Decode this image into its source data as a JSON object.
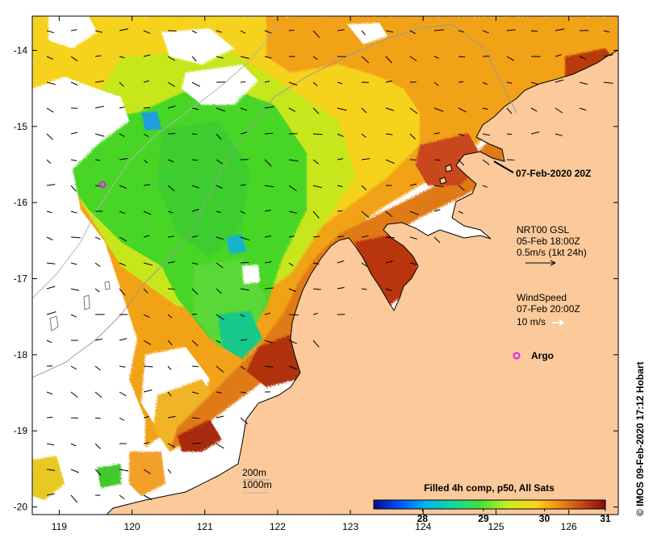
{
  "map": {
    "region": "North-west Australian shelf",
    "lon_ticks": [
      "119",
      "120",
      "121",
      "122",
      "123",
      "124",
      "125",
      "126"
    ],
    "lat_ticks": [
      "-14",
      "-15",
      "-16",
      "-17",
      "-18",
      "-19",
      "-20"
    ],
    "lon_range": [
      118.63,
      126.68
    ],
    "lat_range": [
      -20.1,
      -13.55
    ],
    "land_color": "#fbc99a",
    "no_data_color": "#ffffff"
  },
  "annotations": {
    "date_label": "07-Feb-2020 20Z",
    "current": {
      "line1": "NRT00 GSL",
      "line2": "05-Feb 18:00Z",
      "line3": "0.5m/s (1kt 24h)"
    },
    "wind": {
      "line1": "WindSpeed",
      "line2": "07-Feb 20:00Z",
      "line3": "10 m/s"
    },
    "argo_label": "Argo",
    "argo_color": "#e21ee2",
    "contours": {
      "line1": "200m",
      "line2": "1000m"
    }
  },
  "colorbar": {
    "title": "Filled 4h comp, p50, All Sats",
    "ticks": [
      "28",
      "29",
      "30",
      "31"
    ],
    "range": [
      27.2,
      31
    ],
    "stops": [
      "#000e8a",
      "#0050ff",
      "#00b4f0",
      "#12d8a0",
      "#46e13a",
      "#c8ee1e",
      "#ffd21e",
      "#f28c10",
      "#c84614",
      "#8a0a06"
    ]
  },
  "credit": "© IMOS 09-Feb-2020 17:12 Hobart"
}
